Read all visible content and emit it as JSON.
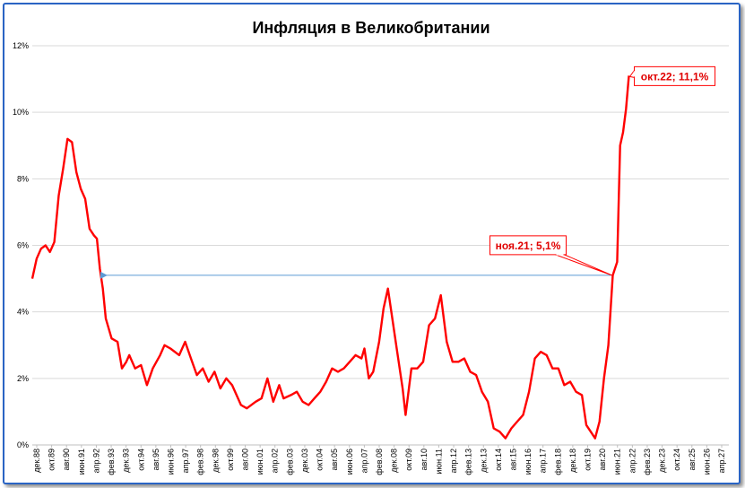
{
  "chart_data": {
    "type": "line",
    "title": "Инфляция в Великобритании",
    "xlabel": "",
    "ylabel": "",
    "ylim": [
      0,
      12
    ],
    "yticks": [
      "0%",
      "2%",
      "4%",
      "6%",
      "8%",
      "10%",
      "12%"
    ],
    "xlim": [
      "1988-12",
      "2028-06"
    ],
    "xticks": [
      "дек.88",
      "окт.89",
      "авг.90",
      "июн.91",
      "апр.92",
      "фев.93",
      "дек.93",
      "окт.94",
      "авг.95",
      "июн.96",
      "апр.97",
      "фев.98",
      "дек.98",
      "окт.99",
      "авг.00",
      "июн.01",
      "апр.02",
      "фев.03",
      "дек.03",
      "окт.04",
      "авг.05",
      "июн.06",
      "апр.07",
      "фев.08",
      "дек.08",
      "окт.09",
      "авг.10",
      "июн.11",
      "апр.12",
      "фев.13",
      "дек.13",
      "окт.14",
      "авг.15",
      "июн.16",
      "апр.17",
      "фев.18",
      "дек.18",
      "окт.19",
      "авг.20",
      "июн.21",
      "апр.22",
      "фев.23",
      "дек.23",
      "окт.24",
      "авг.25",
      "июн.26",
      "апр.27"
    ],
    "grid": "horizontal",
    "colors": {
      "line": "#ff0000",
      "arrow": "#5b9bd5",
      "frame": "#2a64c4",
      "grid": "#d9d9d9"
    },
    "series": [
      {
        "values": [
          [
            "1988-12",
            5.0
          ],
          [
            "1989-03",
            5.6
          ],
          [
            "1989-06",
            5.9
          ],
          [
            "1989-09",
            6.0
          ],
          [
            "1989-12",
            5.8
          ],
          [
            "1990-03",
            6.1
          ],
          [
            "1990-06",
            7.5
          ],
          [
            "1990-09",
            8.3
          ],
          [
            "1990-12",
            9.2
          ],
          [
            "1991-03",
            9.1
          ],
          [
            "1991-06",
            8.2
          ],
          [
            "1991-09",
            7.7
          ],
          [
            "1991-12",
            7.4
          ],
          [
            "1992-03",
            6.5
          ],
          [
            "1992-06",
            6.3
          ],
          [
            "1992-08",
            6.2
          ],
          [
            "1992-10",
            5.3
          ],
          [
            "1992-12",
            4.7
          ],
          [
            "1993-02",
            3.8
          ],
          [
            "1993-06",
            3.2
          ],
          [
            "1993-10",
            3.1
          ],
          [
            "1994-01",
            2.3
          ],
          [
            "1994-04",
            2.5
          ],
          [
            "1994-06",
            2.7
          ],
          [
            "1994-10",
            2.3
          ],
          [
            "1995-02",
            2.4
          ],
          [
            "1995-06",
            1.8
          ],
          [
            "1995-10",
            2.3
          ],
          [
            "1996-03",
            2.7
          ],
          [
            "1996-06",
            3.0
          ],
          [
            "1996-10",
            2.9
          ],
          [
            "1997-04",
            2.7
          ],
          [
            "1997-08",
            3.1
          ],
          [
            "1997-12",
            2.6
          ],
          [
            "1998-04",
            2.1
          ],
          [
            "1998-08",
            2.3
          ],
          [
            "1998-12",
            1.9
          ],
          [
            "1999-04",
            2.2
          ],
          [
            "1999-08",
            1.7
          ],
          [
            "1999-12",
            2.0
          ],
          [
            "2000-04",
            1.8
          ],
          [
            "2000-10",
            1.2
          ],
          [
            "2001-02",
            1.1
          ],
          [
            "2001-08",
            1.3
          ],
          [
            "2001-12",
            1.4
          ],
          [
            "2002-04",
            2.0
          ],
          [
            "2002-08",
            1.3
          ],
          [
            "2002-12",
            1.8
          ],
          [
            "2003-03",
            1.4
          ],
          [
            "2003-08",
            1.5
          ],
          [
            "2003-12",
            1.6
          ],
          [
            "2004-04",
            1.3
          ],
          [
            "2004-08",
            1.2
          ],
          [
            "2004-12",
            1.4
          ],
          [
            "2005-04",
            1.6
          ],
          [
            "2005-08",
            1.9
          ],
          [
            "2005-12",
            2.3
          ],
          [
            "2006-04",
            2.2
          ],
          [
            "2006-08",
            2.3
          ],
          [
            "2006-12",
            2.5
          ],
          [
            "2007-04",
            2.7
          ],
          [
            "2007-08",
            2.6
          ],
          [
            "2007-10",
            2.9
          ],
          [
            "2008-01",
            2.0
          ],
          [
            "2008-04",
            2.2
          ],
          [
            "2008-08",
            3.1
          ],
          [
            "2008-11",
            4.1
          ],
          [
            "2009-02",
            4.7
          ],
          [
            "2009-05",
            3.8
          ],
          [
            "2009-08",
            2.9
          ],
          [
            "2009-12",
            1.7
          ],
          [
            "2010-02",
            0.9
          ],
          [
            "2010-06",
            2.3
          ],
          [
            "2010-10",
            2.3
          ],
          [
            "2011-02",
            2.5
          ],
          [
            "2011-06",
            3.6
          ],
          [
            "2011-10",
            3.8
          ],
          [
            "2012-02",
            4.5
          ],
          [
            "2012-06",
            3.1
          ],
          [
            "2012-10",
            2.5
          ],
          [
            "2013-02",
            2.5
          ],
          [
            "2013-06",
            2.6
          ],
          [
            "2013-10",
            2.2
          ],
          [
            "2014-02",
            2.1
          ],
          [
            "2014-06",
            1.6
          ],
          [
            "2014-10",
            1.3
          ],
          [
            "2015-02",
            0.5
          ],
          [
            "2015-06",
            0.4
          ],
          [
            "2015-10",
            0.2
          ],
          [
            "2016-02",
            0.5
          ],
          [
            "2016-06",
            0.7
          ],
          [
            "2016-10",
            0.9
          ],
          [
            "2017-02",
            1.6
          ],
          [
            "2017-06",
            2.6
          ],
          [
            "2017-10",
            2.8
          ],
          [
            "2018-02",
            2.7
          ],
          [
            "2018-06",
            2.3
          ],
          [
            "2018-10",
            2.3
          ],
          [
            "2019-02",
            1.8
          ],
          [
            "2019-06",
            1.9
          ],
          [
            "2019-10",
            1.6
          ],
          [
            "2020-02",
            1.5
          ],
          [
            "2020-05",
            0.6
          ],
          [
            "2020-08",
            0.4
          ],
          [
            "2020-11",
            0.2
          ],
          [
            "2021-02",
            0.7
          ],
          [
            "2021-05",
            2.0
          ],
          [
            "2021-08",
            3.0
          ],
          [
            "2021-11",
            5.1
          ],
          [
            "2022-02",
            5.5
          ],
          [
            "2022-04",
            9.0
          ],
          [
            "2022-06",
            9.4
          ],
          [
            "2022-08",
            10.1
          ],
          [
            "2022-10",
            11.1
          ]
        ]
      }
    ],
    "annotations": [
      {
        "label": "окт.22; 11,1%",
        "x": "2022-10",
        "y": 11.1
      },
      {
        "label": "ноя.21; 5,1%",
        "x": "2021-11",
        "y": 5.1
      }
    ],
    "arrow": {
      "from": [
        "2021-11",
        5.1
      ],
      "to": [
        "1992-11",
        5.1
      ]
    }
  }
}
